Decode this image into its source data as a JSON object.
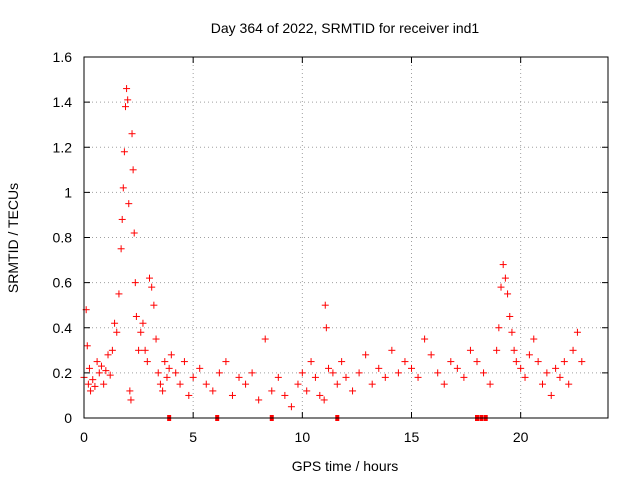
{
  "chart_data": {
    "type": "scatter",
    "title": "Day 364 of 2022, SRMTID for receiver ind1",
    "xlabel": "GPS time / hours",
    "ylabel": "SRMTID / TECUs",
    "xlim": [
      0,
      24
    ],
    "ylim": [
      0,
      1.6
    ],
    "xticks": [
      0,
      5,
      10,
      15,
      20
    ],
    "yticks": [
      0,
      0.2,
      0.4,
      0.6,
      0.8,
      1,
      1.2,
      1.4,
      1.6
    ],
    "xtick_labels": [
      "0",
      "5",
      "10",
      "15",
      "20"
    ],
    "ytick_labels": [
      "0",
      "0.2",
      "0.4",
      "0.6",
      "0.8",
      "1",
      "1.2",
      "1.4",
      "1.6"
    ],
    "grid": true,
    "marker": "+",
    "color": "#ff0000",
    "series": [
      {
        "name": "SRMTID",
        "x": [
          0.0,
          0.1,
          0.15,
          0.2,
          0.25,
          0.3,
          0.4,
          0.5,
          0.6,
          0.7,
          0.8,
          0.9,
          1.0,
          1.1,
          1.2,
          1.3,
          1.4,
          1.5,
          1.6,
          1.7,
          1.75,
          1.8,
          1.85,
          1.9,
          1.95,
          2.0,
          2.05,
          2.1,
          2.15,
          2.2,
          2.25,
          2.3,
          2.35,
          2.4,
          2.5,
          2.6,
          2.7,
          2.8,
          2.9,
          3.0,
          3.1,
          3.2,
          3.3,
          3.4,
          3.5,
          3.6,
          3.7,
          3.8,
          3.9,
          4.0,
          4.2,
          4.4,
          4.6,
          4.8,
          5.0,
          5.3,
          5.6,
          5.9,
          6.2,
          6.5,
          6.8,
          7.1,
          7.4,
          7.7,
          8.0,
          8.3,
          8.6,
          8.9,
          9.2,
          9.5,
          9.8,
          10.0,
          10.2,
          10.4,
          10.6,
          10.8,
          11.0,
          11.05,
          11.1,
          11.2,
          11.4,
          11.6,
          11.8,
          12.0,
          12.3,
          12.6,
          12.9,
          13.2,
          13.5,
          13.8,
          14.1,
          14.4,
          14.7,
          15.0,
          15.3,
          15.6,
          15.9,
          16.2,
          16.5,
          16.8,
          17.1,
          17.4,
          17.7,
          18.0,
          18.3,
          18.6,
          18.9,
          19.0,
          19.1,
          19.2,
          19.3,
          19.4,
          19.5,
          19.6,
          19.7,
          19.8,
          20.0,
          20.2,
          20.4,
          20.6,
          20.8,
          21.0,
          21.2,
          21.4,
          21.6,
          21.8,
          22.0,
          22.2,
          22.4,
          22.6,
          22.8
        ],
        "y": [
          0.18,
          0.48,
          0.32,
          0.15,
          0.22,
          0.12,
          0.17,
          0.14,
          0.25,
          0.2,
          0.23,
          0.15,
          0.21,
          0.28,
          0.19,
          0.3,
          0.42,
          0.38,
          0.55,
          0.75,
          0.88,
          1.02,
          1.18,
          1.38,
          1.46,
          1.41,
          0.95,
          0.12,
          0.08,
          1.26,
          1.1,
          0.82,
          0.6,
          0.45,
          0.3,
          0.38,
          0.42,
          0.3,
          0.25,
          0.62,
          0.58,
          0.5,
          0.35,
          0.2,
          0.15,
          0.12,
          0.25,
          0.18,
          0.22,
          0.28,
          0.2,
          0.15,
          0.25,
          0.1,
          0.18,
          0.22,
          0.15,
          0.12,
          0.2,
          0.25,
          0.1,
          0.18,
          0.15,
          0.2,
          0.08,
          0.35,
          0.12,
          0.18,
          0.1,
          0.05,
          0.15,
          0.2,
          0.12,
          0.25,
          0.18,
          0.1,
          0.08,
          0.5,
          0.4,
          0.22,
          0.2,
          0.15,
          0.25,
          0.18,
          0.12,
          0.2,
          0.28,
          0.15,
          0.22,
          0.18,
          0.3,
          0.2,
          0.25,
          0.22,
          0.18,
          0.35,
          0.28,
          0.2,
          0.15,
          0.25,
          0.22,
          0.18,
          0.3,
          0.25,
          0.2,
          0.15,
          0.3,
          0.4,
          0.58,
          0.68,
          0.62,
          0.55,
          0.45,
          0.38,
          0.3,
          0.25,
          0.22,
          0.18,
          0.28,
          0.35,
          0.25,
          0.15,
          0.2,
          0.1,
          0.22,
          0.18,
          0.25,
          0.15,
          0.3,
          0.38,
          0.25
        ]
      }
    ],
    "zero_markers_x": [
      3.9,
      6.1,
      8.6,
      11.6,
      18.0,
      18.2,
      18.4
    ]
  }
}
